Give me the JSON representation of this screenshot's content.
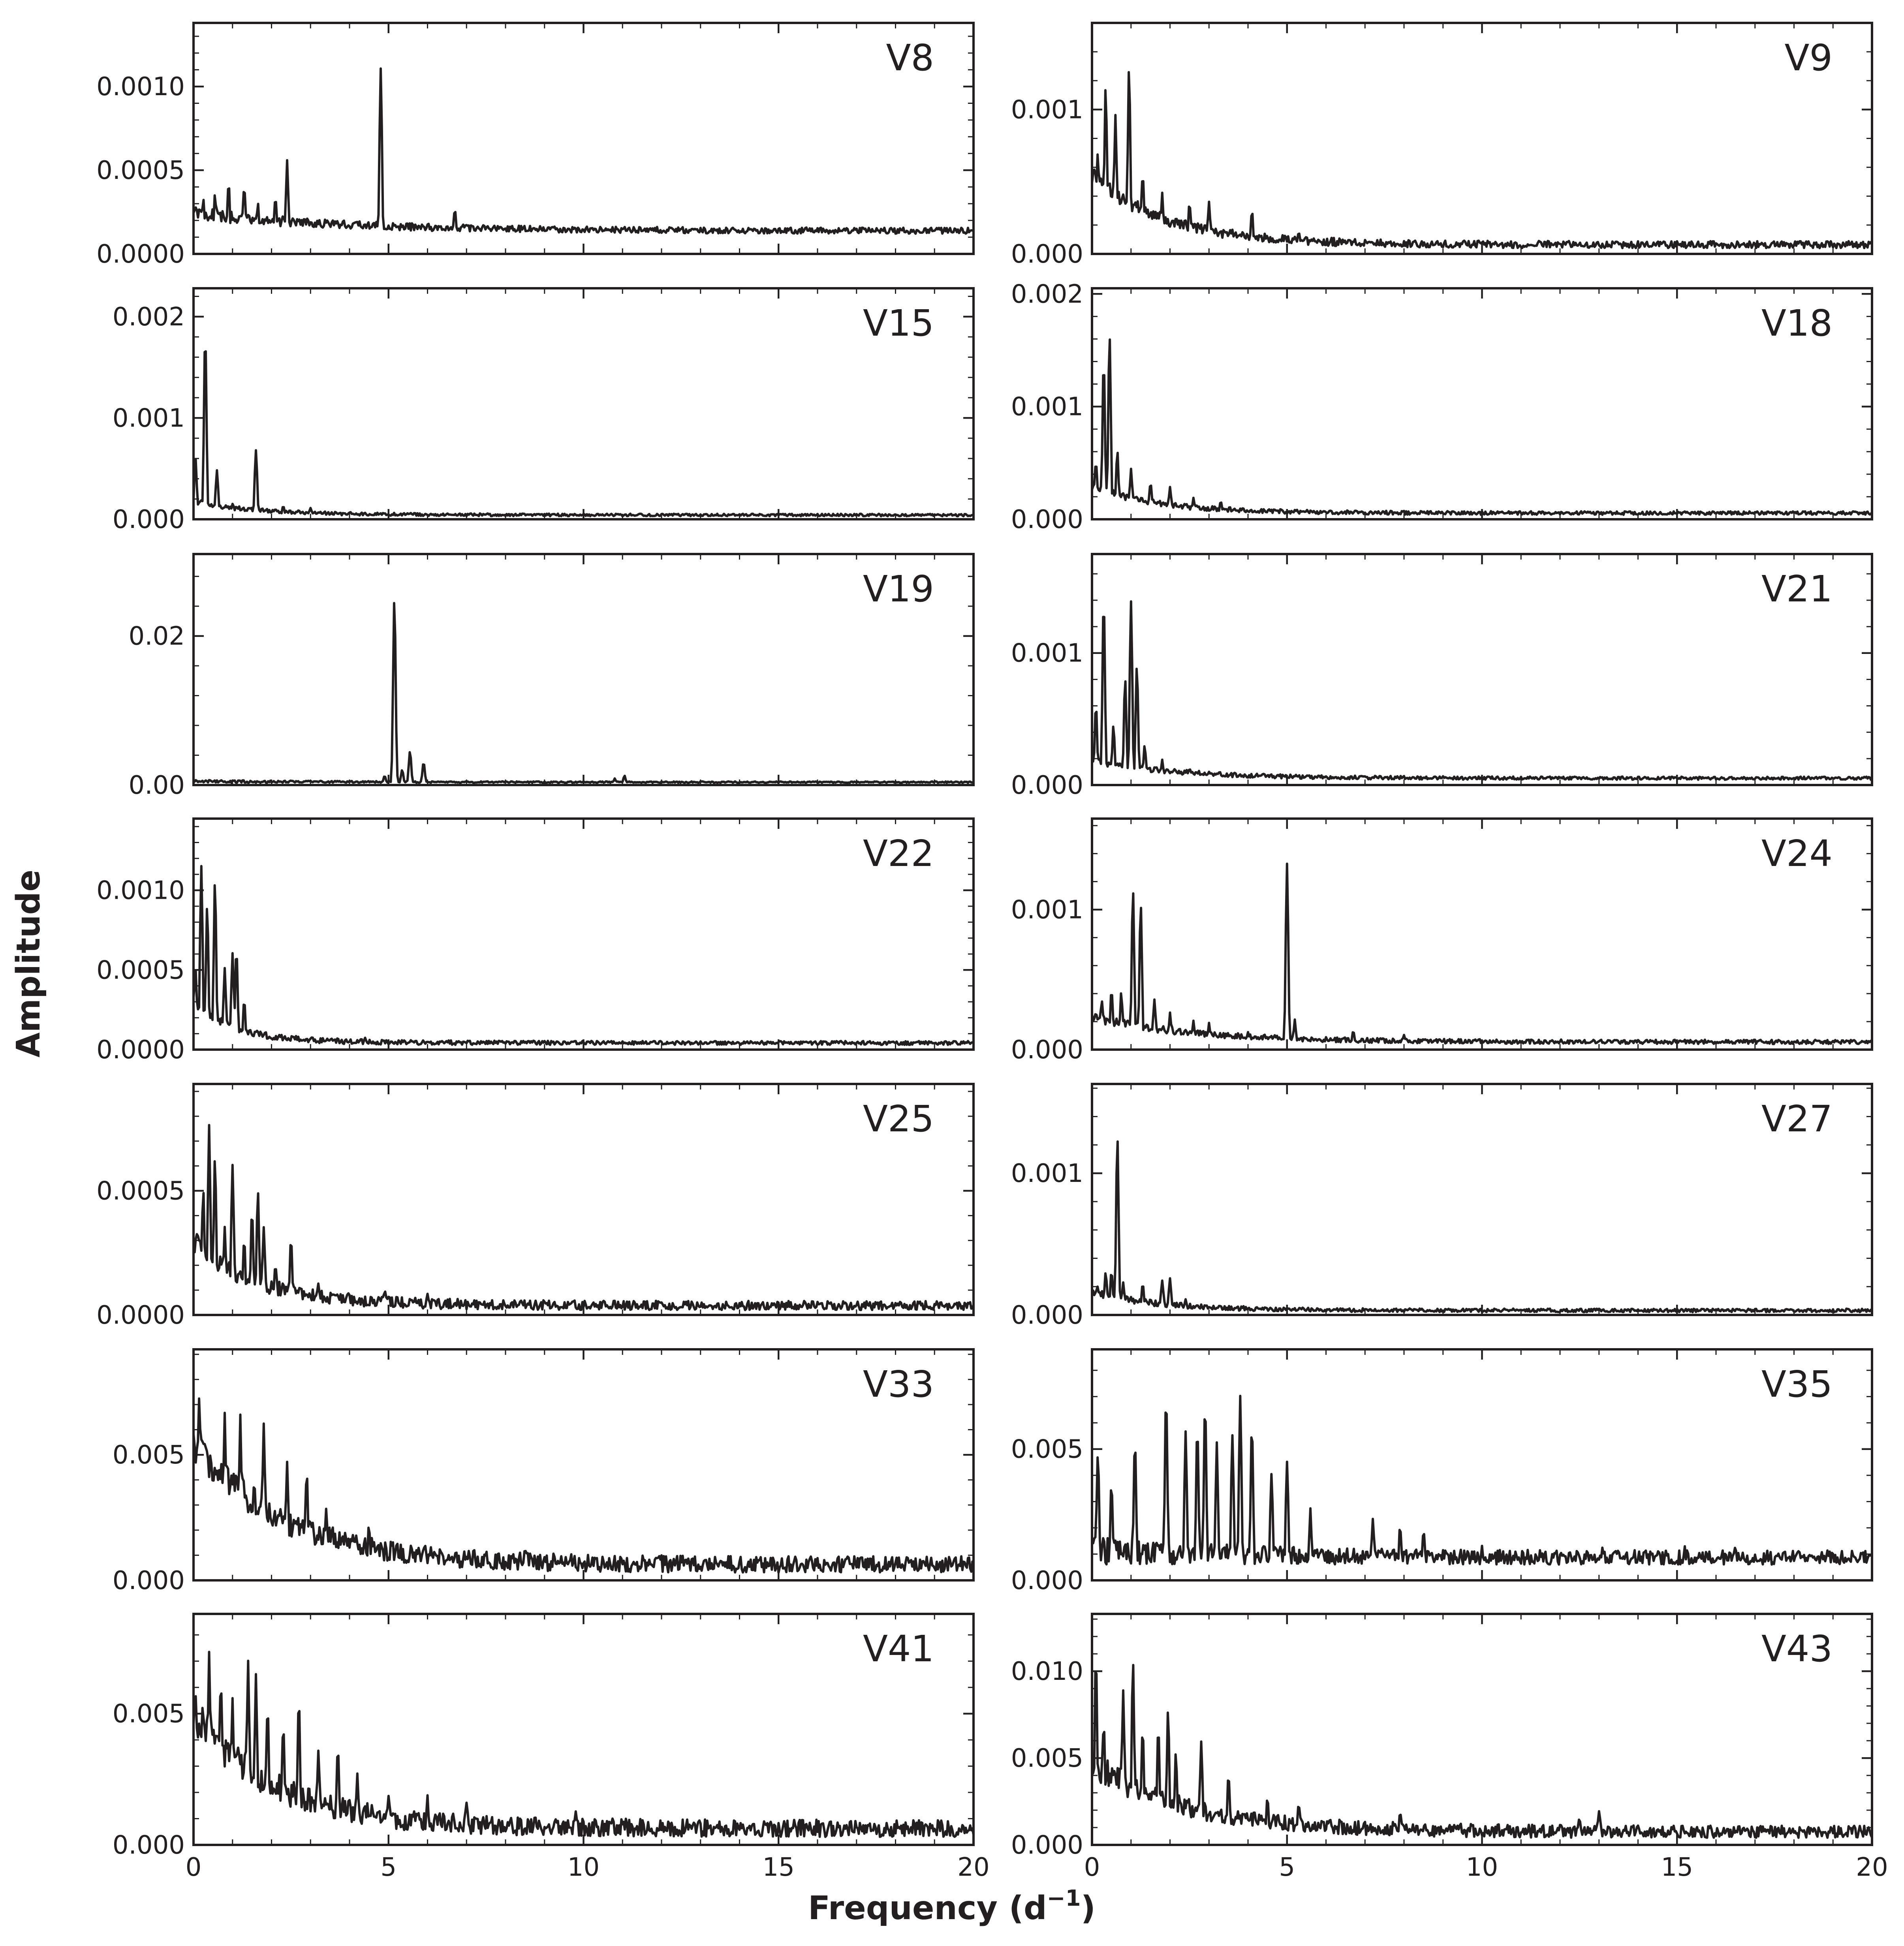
{
  "chart_data": {
    "type": "line",
    "xlabel": "Frequency (d",
    "xlabel_sup": "−1",
    "xlabel_close": ")",
    "ylabel": "Amplitude",
    "xlim": [
      0,
      20
    ],
    "x_ticks": [
      0,
      5,
      10,
      15,
      20
    ],
    "x_tick_labels": [
      "0",
      "5",
      "10",
      "15",
      "20"
    ],
    "grid": false,
    "layout": "7 rows x 2 columns, shared x-axis",
    "panels": [
      {
        "name": "V8",
        "ylim": [
          0,
          0.00138
        ],
        "yticks": [
          0,
          0.0005,
          0.001
        ],
        "ytick_labels": [
          "0.0000",
          "0.0005",
          "0.0010"
        ],
        "decimals": 4,
        "baseline": 0.00012,
        "decay": 8e-05,
        "decay_scale": 4,
        "noise": 6e-05,
        "seed": 8,
        "peaks": [
          [
            0.05,
            0.00025
          ],
          [
            0.25,
            0.00032
          ],
          [
            0.55,
            0.00035
          ],
          [
            0.9,
            0.00042
          ],
          [
            1.3,
            0.0004
          ],
          [
            1.65,
            0.0003
          ],
          [
            2.1,
            0.00033
          ],
          [
            2.4,
            0.00055
          ],
          [
            2.9,
            0.00016
          ],
          [
            4.55,
            0.00012
          ],
          [
            4.8,
            0.0011
          ],
          [
            5.0,
            0.00014
          ],
          [
            6.3,
            0.0001
          ],
          [
            6.7,
            0.00026
          ]
        ]
      },
      {
        "name": "V9",
        "ylim": [
          0,
          0.0016
        ],
        "yticks": [
          0,
          0.001
        ],
        "ytick_labels": [
          "0.000",
          "0.001"
        ],
        "decimals": 3,
        "baseline": 4e-05,
        "decay": 0.00045,
        "decay_scale": 1.8,
        "noise": 8e-05,
        "seed": 9,
        "peaks": [
          [
            0.15,
            0.0007
          ],
          [
            0.35,
            0.00115
          ],
          [
            0.6,
            0.00095
          ],
          [
            0.95,
            0.00127
          ],
          [
            1.3,
            0.00055
          ],
          [
            1.8,
            0.0004
          ],
          [
            2.5,
            0.00035
          ],
          [
            3.0,
            0.00035
          ],
          [
            4.1,
            0.00028
          ],
          [
            5.3,
            0.00015
          ]
        ]
      },
      {
        "name": "V15",
        "ylim": [
          0,
          0.00228
        ],
        "yticks": [
          0,
          0.001,
          0.002
        ],
        "ytick_labels": [
          "0.000",
          "0.001",
          "0.002"
        ],
        "decimals": 3,
        "baseline": 3e-05,
        "decay": 0.00012,
        "decay_scale": 1.5,
        "noise": 4e-05,
        "seed": 15,
        "peaks": [
          [
            0.05,
            0.0006
          ],
          [
            0.3,
            0.00182
          ],
          [
            0.6,
            0.00048
          ],
          [
            1.0,
            0.00015
          ],
          [
            1.6,
            0.00068
          ],
          [
            2.3,
            0.00012
          ],
          [
            3.0,
            0.0001
          ]
        ]
      },
      {
        "name": "V18",
        "ylim": [
          0,
          0.00205
        ],
        "yticks": [
          0,
          0.001,
          0.002
        ],
        "ytick_labels": [
          "0.000",
          "0.001",
          "0.002"
        ],
        "decimals": 3,
        "baseline": 4e-05,
        "decay": 0.00022,
        "decay_scale": 1.6,
        "noise": 5e-05,
        "seed": 18,
        "peaks": [
          [
            0.1,
            0.0005
          ],
          [
            0.3,
            0.0014
          ],
          [
            0.45,
            0.00163
          ],
          [
            0.65,
            0.0006
          ],
          [
            1.0,
            0.00044
          ],
          [
            1.5,
            0.00032
          ],
          [
            2.0,
            0.00028
          ],
          [
            2.6,
            0.00018
          ],
          [
            3.3,
            0.00015
          ]
        ]
      },
      {
        "name": "V19",
        "ylim": [
          0,
          0.031
        ],
        "yticks": [
          0,
          0.02
        ],
        "ytick_labels": [
          "0.00",
          "0.02"
        ],
        "decimals": 2,
        "baseline": 0.0003,
        "decay": 0,
        "decay_scale": 1,
        "noise": 0.0003,
        "seed": 19,
        "peaks": [
          [
            4.9,
            0.0012
          ],
          [
            5.15,
            0.025
          ],
          [
            5.35,
            0.002
          ],
          [
            5.55,
            0.0045
          ],
          [
            5.9,
            0.003
          ],
          [
            10.8,
            0.0008
          ],
          [
            11.05,
            0.0012
          ]
        ]
      },
      {
        "name": "V21",
        "ylim": [
          0,
          0.00175
        ],
        "yticks": [
          0,
          0.001
        ],
        "ytick_labels": [
          "0.000",
          "0.001"
        ],
        "decimals": 3,
        "baseline": 4e-05,
        "decay": 0.00012,
        "decay_scale": 2.0,
        "noise": 4e-05,
        "seed": 21,
        "peaks": [
          [
            0.1,
            0.0006
          ],
          [
            0.3,
            0.0014
          ],
          [
            0.55,
            0.00045
          ],
          [
            0.85,
            0.0008
          ],
          [
            1.0,
            0.00138
          ],
          [
            1.15,
            0.0009
          ],
          [
            1.35,
            0.0003
          ],
          [
            1.8,
            0.00018
          ],
          [
            2.5,
            0.00012
          ]
        ]
      },
      {
        "name": "V22",
        "ylim": [
          0,
          0.00145
        ],
        "yticks": [
          0,
          0.0005,
          0.001
        ],
        "ytick_labels": [
          "0.0000",
          "0.0005",
          "0.0010"
        ],
        "decimals": 4,
        "baseline": 3e-05,
        "decay": 0.00025,
        "decay_scale": 1.0,
        "noise": 4e-05,
        "seed": 22,
        "peaks": [
          [
            0.05,
            0.0005
          ],
          [
            0.2,
            0.00115
          ],
          [
            0.35,
            0.0009
          ],
          [
            0.55,
            0.00105
          ],
          [
            0.8,
            0.0005
          ],
          [
            1.0,
            0.0006
          ],
          [
            1.1,
            0.00062
          ],
          [
            1.3,
            0.0003
          ],
          [
            1.6,
            0.0001
          ],
          [
            4.4,
            7e-05
          ]
        ]
      },
      {
        "name": "V24",
        "ylim": [
          0,
          0.00165
        ],
        "yticks": [
          0,
          0.001
        ],
        "ytick_labels": [
          "0.000",
          "0.001"
        ],
        "decimals": 3,
        "baseline": 4e-05,
        "decay": 0.00016,
        "decay_scale": 2.5,
        "noise": 5e-05,
        "seed": 24,
        "peaks": [
          [
            0.25,
            0.00035
          ],
          [
            0.5,
            0.00042
          ],
          [
            0.75,
            0.0004
          ],
          [
            1.05,
            0.00113
          ],
          [
            1.25,
            0.00103
          ],
          [
            1.6,
            0.00035
          ],
          [
            2.0,
            0.00025
          ],
          [
            2.6,
            0.0002
          ],
          [
            3.0,
            0.00018
          ],
          [
            4.0,
            0.00012
          ],
          [
            5.0,
            0.00132
          ],
          [
            5.2,
            0.0002
          ],
          [
            6.7,
            0.00013
          ],
          [
            8.0,
            0.0001
          ]
        ]
      },
      {
        "name": "V25",
        "ylim": [
          0,
          0.00093
        ],
        "yticks": [
          0,
          0.0005
        ],
        "ytick_labels": [
          "0.0000",
          "0.0005"
        ],
        "decimals": 4,
        "baseline": 2e-05,
        "decay": 0.00022,
        "decay_scale": 1.6,
        "noise": 6e-05,
        "seed": 25,
        "peaks": [
          [
            0.1,
            0.00035
          ],
          [
            0.25,
            0.0005
          ],
          [
            0.4,
            0.00075
          ],
          [
            0.55,
            0.00062
          ],
          [
            0.8,
            0.00035
          ],
          [
            1.0,
            0.0006
          ],
          [
            1.3,
            0.0003
          ],
          [
            1.5,
            0.00042
          ],
          [
            1.65,
            0.00049
          ],
          [
            1.8,
            0.00035
          ],
          [
            2.1,
            0.0002
          ],
          [
            2.5,
            0.0003
          ],
          [
            3.2,
            0.00012
          ],
          [
            4.9,
            9e-05
          ],
          [
            6.0,
            8e-05
          ]
        ]
      },
      {
        "name": "V27",
        "ylim": [
          0,
          0.00163
        ],
        "yticks": [
          0,
          0.001
        ],
        "ytick_labels": [
          "0.000",
          "0.001"
        ],
        "decimals": 3,
        "baseline": 2e-05,
        "decay": 0.00012,
        "decay_scale": 1.5,
        "noise": 4e-05,
        "seed": 27,
        "peaks": [
          [
            0.15,
            0.0002
          ],
          [
            0.35,
            0.0003
          ],
          [
            0.5,
            0.0003
          ],
          [
            0.65,
            0.00125
          ],
          [
            0.8,
            0.00022
          ],
          [
            1.3,
            0.00022
          ],
          [
            1.8,
            0.00024
          ],
          [
            2.0,
            0.00025
          ],
          [
            2.4,
            0.0001
          ]
        ]
      },
      {
        "name": "V33",
        "ylim": [
          0,
          0.0092
        ],
        "yticks": [
          0,
          0.005
        ],
        "ytick_labels": [
          "0.000",
          "0.005"
        ],
        "decimals": 3,
        "baseline": 0.0003,
        "decay": 0.0045,
        "decay_scale": 2.2,
        "noise": 0.0011,
        "seed": 33,
        "peaks": [
          [
            0.15,
            0.0073
          ],
          [
            0.8,
            0.0065
          ],
          [
            1.2,
            0.0063
          ],
          [
            1.8,
            0.0062
          ],
          [
            2.4,
            0.0045
          ],
          [
            2.9,
            0.0042
          ],
          [
            3.4,
            0.0028
          ],
          [
            4.5,
            0.002
          ],
          [
            8.5,
            0.0012
          ],
          [
            15.8,
            0.0007
          ],
          [
            18.7,
            0.0006
          ]
        ]
      },
      {
        "name": "V35",
        "ylim": [
          0,
          0.0088
        ],
        "yticks": [
          0,
          0.005
        ],
        "ytick_labels": [
          "0.000",
          "0.005"
        ],
        "decimals": 3,
        "baseline": 0.0006,
        "decay": 0,
        "decay_scale": 1,
        "noise": 0.0009,
        "seed": 35,
        "peaks": [
          [
            0.15,
            0.0048
          ],
          [
            0.5,
            0.0035
          ],
          [
            1.1,
            0.0052
          ],
          [
            1.9,
            0.0069
          ],
          [
            2.4,
            0.0055
          ],
          [
            2.7,
            0.0058
          ],
          [
            2.9,
            0.0065
          ],
          [
            3.2,
            0.005
          ],
          [
            3.6,
            0.0055
          ],
          [
            3.8,
            0.0068
          ],
          [
            4.1,
            0.0058
          ],
          [
            4.6,
            0.004
          ],
          [
            5.0,
            0.0045
          ],
          [
            5.6,
            0.0025
          ],
          [
            7.2,
            0.0022
          ],
          [
            7.9,
            0.002
          ],
          [
            8.5,
            0.0018
          ],
          [
            10.0,
            0.0013
          ],
          [
            13.1,
            0.0011
          ],
          [
            15.2,
            0.0011
          ],
          [
            16.5,
            0.0012
          ],
          [
            19.0,
            0.0009
          ]
        ]
      },
      {
        "name": "V41",
        "ylim": [
          0,
          0.0088
        ],
        "yticks": [
          0,
          0.005
        ],
        "ytick_labels": [
          "0.000",
          "0.005"
        ],
        "decimals": 3,
        "baseline": 0.0003,
        "decay": 0.004,
        "decay_scale": 2.0,
        "noise": 0.0011,
        "seed": 41,
        "peaks": [
          [
            0.05,
            0.0055
          ],
          [
            0.4,
            0.0072
          ],
          [
            0.7,
            0.0062
          ],
          [
            1.0,
            0.0055
          ],
          [
            1.4,
            0.007
          ],
          [
            1.6,
            0.0065
          ],
          [
            1.9,
            0.0052
          ],
          [
            2.3,
            0.0045
          ],
          [
            2.7,
            0.0055
          ],
          [
            3.2,
            0.0035
          ],
          [
            3.7,
            0.0037
          ],
          [
            4.2,
            0.0025
          ],
          [
            5.0,
            0.0018
          ],
          [
            6.0,
            0.0016
          ],
          [
            7.0,
            0.0014
          ],
          [
            9.8,
            0.0012
          ]
        ]
      },
      {
        "name": "V43",
        "ylim": [
          0,
          0.0133
        ],
        "yticks": [
          0,
          0.005,
          0.01
        ],
        "ytick_labels": [
          "0.000",
          "0.005",
          "0.010"
        ],
        "decimals": 3,
        "baseline": 0.0004,
        "decay": 0.0035,
        "decay_scale": 2.3,
        "noise": 0.0012,
        "seed": 43,
        "peaks": [
          [
            0.1,
            0.0108
          ],
          [
            0.3,
            0.007
          ],
          [
            0.8,
            0.0088
          ],
          [
            1.05,
            0.0104
          ],
          [
            1.3,
            0.0065
          ],
          [
            1.7,
            0.0068
          ],
          [
            1.95,
            0.0076
          ],
          [
            2.15,
            0.005
          ],
          [
            2.8,
            0.0058
          ],
          [
            3.5,
            0.004
          ],
          [
            4.5,
            0.0025
          ],
          [
            5.3,
            0.0022
          ],
          [
            7.9,
            0.0016
          ],
          [
            12.5,
            0.0014
          ],
          [
            13.0,
            0.0018
          ]
        ]
      }
    ]
  }
}
